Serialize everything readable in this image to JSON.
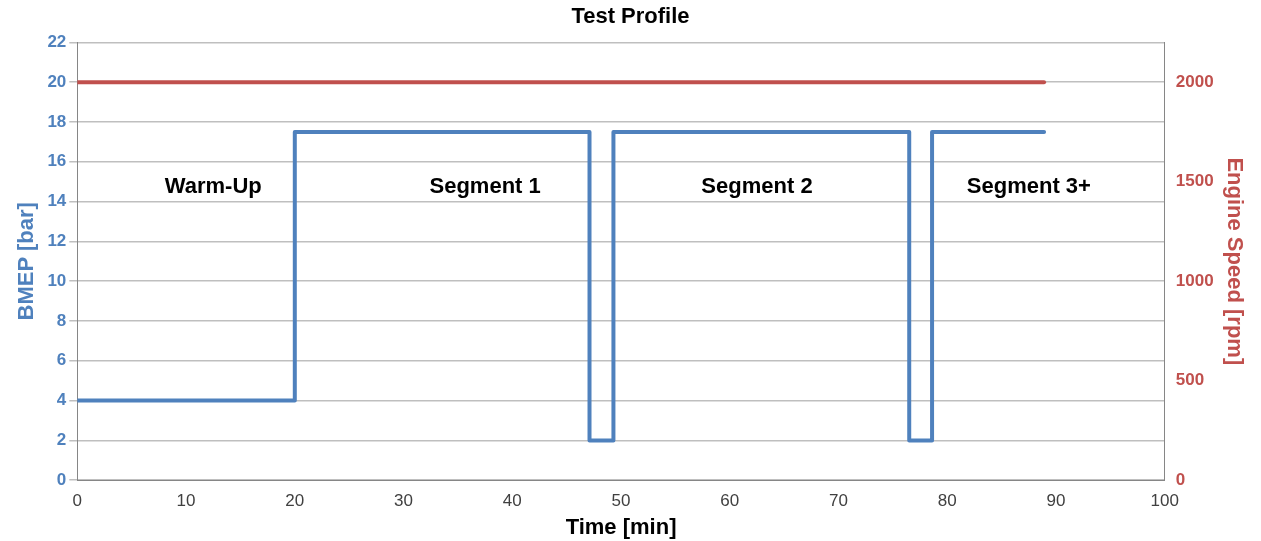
{
  "chart_data": {
    "type": "line",
    "title": "Test Profile",
    "xlabel": "Time [min]",
    "ylabel": "BMEP [bar]",
    "y2label": "Engine Speed [rpm]",
    "series": [
      {
        "color": "#4f81bd",
        "x": [
          0,
          20,
          20,
          47.1,
          47.1,
          49.3,
          49.3,
          76.5,
          76.5,
          78.6,
          78.6,
          88.9
        ],
        "values": [
          4,
          4,
          17.5,
          17.5,
          2,
          2,
          17.5,
          17.5,
          2,
          2,
          17.5,
          17.5
        ]
      },
      {
        "color": "#c0504d",
        "axis": "y2",
        "x": [
          0,
          88.9
        ],
        "values": [
          2000,
          2000
        ]
      }
    ],
    "xlim": [
      0,
      100
    ],
    "xticks": [
      0,
      10,
      20,
      30,
      40,
      50,
      60,
      70,
      80,
      90,
      100
    ],
    "ylim": [
      0,
      22
    ],
    "yticks": [
      0,
      2,
      4,
      6,
      8,
      10,
      12,
      14,
      16,
      18,
      20,
      22
    ],
    "y2lim": [
      0,
      2200
    ],
    "y2ticks": [
      0,
      500,
      1000,
      1500,
      2000
    ],
    "grid": "y",
    "legend": false,
    "marker": "none",
    "annotations": [
      "Warm-Up",
      "Segment 1",
      "Segment 2",
      "Segment 3+"
    ]
  }
}
